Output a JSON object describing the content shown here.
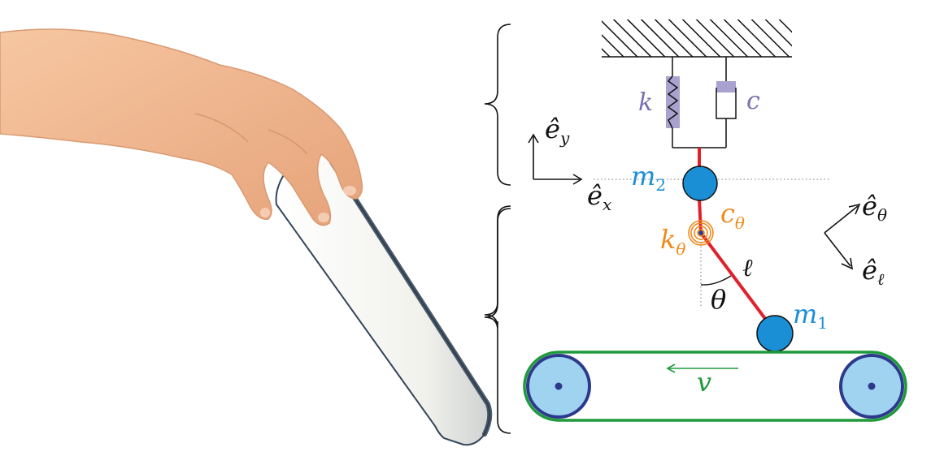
{
  "labels": {
    "k": "k",
    "c": "c",
    "e_y": "ê",
    "e_y_sub": "y",
    "e_x": "ê",
    "e_x_sub": "x",
    "m2": "m",
    "m2_sub": "2",
    "e_theta": "ê",
    "e_theta_sub": "θ",
    "e_ell": "ê",
    "e_ell_sub": "ℓ",
    "c_theta": "c",
    "c_theta_sub": "θ",
    "k_theta": "k",
    "k_theta_sub": "θ",
    "ell": "ℓ",
    "theta": "θ",
    "m1": "m",
    "m1_sub": "1",
    "v": "v"
  },
  "colors": {
    "spring_fill": "#a9a2cf",
    "spring_label": "#7a6fb0",
    "rod": "#e0202a",
    "mass_fill": "#1a8fd6",
    "mass_label": "#1a8fd6",
    "rotational": "#f08a1c",
    "belt": "#1e9a3a",
    "pulley_fill": "#9fd3f0",
    "pulley_stroke": "#2d3a8c",
    "ink": "#111111",
    "chalk": "#f4f4f0",
    "chalk_edge": "#34465a",
    "skin": "#f0b38a"
  }
}
